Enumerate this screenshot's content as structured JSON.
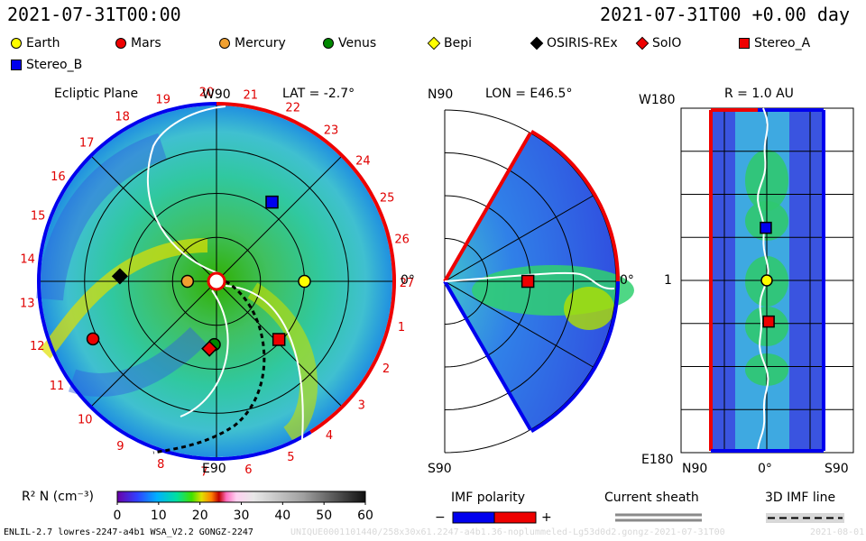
{
  "header": {
    "left": "2021-07-31T00:00",
    "right": "2021-07-31T00 +0.00 day"
  },
  "legend": {
    "items": [
      {
        "label": "Earth",
        "shape": "circle",
        "color": "#ffff00"
      },
      {
        "label": "Mars",
        "shape": "circle",
        "color": "#ee0000"
      },
      {
        "label": "Mercury",
        "shape": "circle",
        "color": "#f0a030"
      },
      {
        "label": "Venus",
        "shape": "circle",
        "color": "#008800"
      },
      {
        "label": "Bepi",
        "shape": "diamond",
        "color": "#ffff00"
      },
      {
        "label": "OSIRIS-REx",
        "shape": "diamond",
        "color": "#000000"
      },
      {
        "label": "SolO",
        "shape": "diamond",
        "color": "#ee0000"
      },
      {
        "label": "Stereo_A",
        "shape": "square",
        "color": "#ee0000"
      },
      {
        "label": "Stereo_B",
        "shape": "square",
        "color": "#0000ee"
      }
    ]
  },
  "chart_data": [
    {
      "type": "heatmap",
      "title": "Ecliptic Plane",
      "subtitle": "LAT = -2.7°",
      "top_label": "W90",
      "bottom_label": "E90",
      "right_label": "0°",
      "carrington_ticks": [
        20,
        21,
        22,
        23,
        24,
        25,
        26,
        27,
        1,
        2,
        3,
        4,
        5,
        6,
        7,
        8,
        9,
        10,
        11,
        12,
        13,
        14,
        15,
        16,
        17,
        18,
        19
      ],
      "bodies": [
        {
          "name": "Earth",
          "r_au": 1.0,
          "lon_deg": 0
        },
        {
          "name": "Mercury",
          "r_au": 0.33,
          "lon_deg": 180
        },
        {
          "name": "Venus",
          "r_au": 0.72,
          "lon_deg": -92
        },
        {
          "name": "Mars",
          "r_au": 1.55,
          "lon_deg": -155
        },
        {
          "name": "OSIRIS-REx",
          "r_au": 1.1,
          "lon_deg": 177
        },
        {
          "name": "SolO",
          "r_au": 0.77,
          "lon_deg": -96
        },
        {
          "name": "Stereo_A",
          "r_au": 0.97,
          "lon_deg": -43
        },
        {
          "name": "Stereo_B",
          "r_au": 1.1,
          "lon_deg": 55
        }
      ]
    },
    {
      "type": "heatmap",
      "title": "LON = E46.5°",
      "top_label": "N90",
      "bottom_label": "S90",
      "right_label": "0°",
      "bodies": [
        {
          "name": "Stereo_A",
          "r_au": 0.97,
          "lat_deg": 0
        }
      ]
    },
    {
      "type": "heatmap",
      "title": "R = 1.0 AU",
      "top_label": "W180",
      "bottom_label": "E180",
      "left_tick": "1",
      "x_ticks": [
        "N90",
        "0°",
        "S90"
      ],
      "bodies": [
        {
          "name": "Stereo_B",
          "lat_deg": 1,
          "lon_deg": 55
        },
        {
          "name": "Earth",
          "lat_deg": 0,
          "lon_deg": 0
        },
        {
          "name": "Stereo_A",
          "lat_deg": -2,
          "lon_deg": -43
        }
      ]
    }
  ],
  "colorbar": {
    "label": "R² N (cm⁻³)",
    "ticks": [
      0,
      10,
      20,
      30,
      40,
      50,
      60
    ],
    "range": [
      0,
      60
    ]
  },
  "imf_legend": {
    "polarity_title": "IMF polarity",
    "minus": "−",
    "plus": "+",
    "sheath_title": "Current sheath",
    "line_title": "3D IMF line"
  },
  "footer": {
    "left": "ENLIL-2.7 lowres-2247-a4b1 WSA_V2.2 GONGZ-2247",
    "right": "UNIQUE0001101440/258x30x61.2247-a4b1.36-noplummeled-Lg53d0d2.gongz-2021-07-31T00",
    "date": "2021-08-01"
  }
}
